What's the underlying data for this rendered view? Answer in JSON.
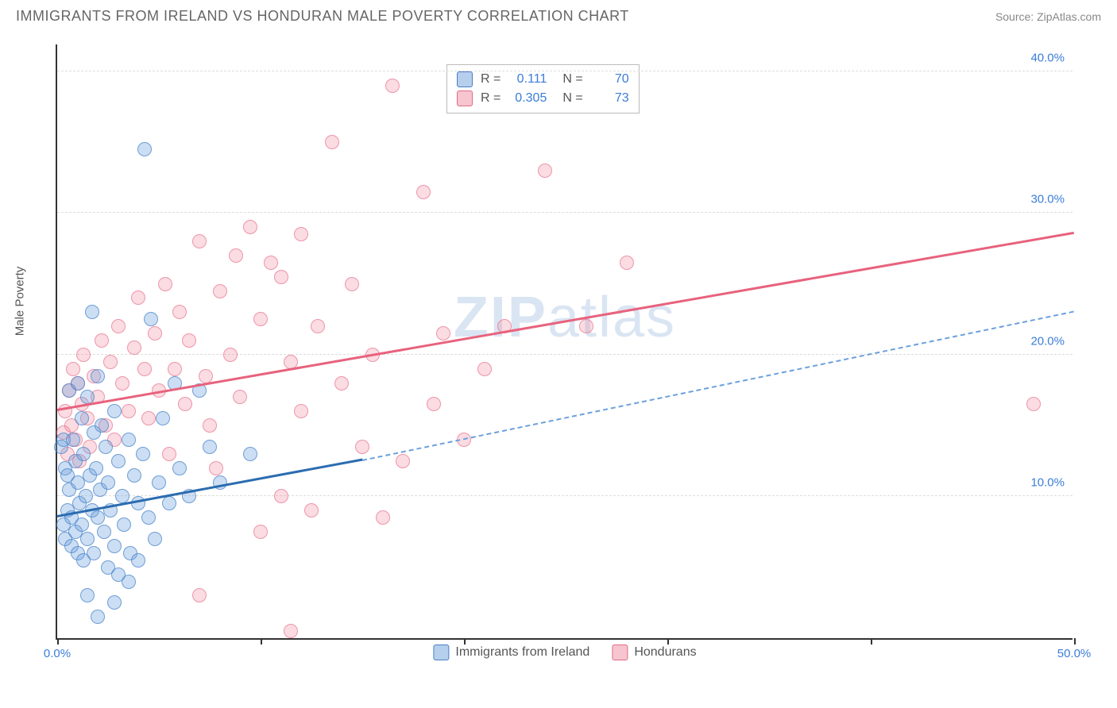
{
  "header": {
    "title": "IMMIGRANTS FROM IRELAND VS HONDURAN MALE POVERTY CORRELATION CHART",
    "source": "Source: ZipAtlas.com"
  },
  "chart": {
    "type": "scatter",
    "y_axis_label": "Male Poverty",
    "xlim": [
      0,
      50
    ],
    "ylim": [
      0,
      42
    ],
    "x_ticks": [
      0,
      10,
      20,
      30,
      40,
      50
    ],
    "x_tick_labels": [
      "0.0%",
      "",
      "",
      "",
      "",
      "50.0%"
    ],
    "y_ticks": [
      10,
      20,
      30,
      40
    ],
    "y_tick_labels": [
      "10.0%",
      "20.0%",
      "30.0%",
      "40.0%"
    ],
    "grid_color": "#dddddd",
    "background_color": "#ffffff",
    "axis_color": "#333333",
    "watermark": {
      "prefix": "ZIP",
      "suffix": "atlas"
    },
    "series": {
      "ireland": {
        "label": "Immigrants from Ireland",
        "color_fill": "rgba(108,160,220,0.35)",
        "color_border": "#4a7fc4",
        "R": "0.111",
        "N": "70",
        "trend": {
          "x1": 0,
          "y1": 8.5,
          "x2_solid": 15,
          "y2_solid": 12.5,
          "x2": 50,
          "y2": 23
        },
        "points": [
          [
            0.2,
            13.5
          ],
          [
            0.3,
            14.0
          ],
          [
            0.3,
            8.0
          ],
          [
            0.4,
            12.0
          ],
          [
            0.4,
            7.0
          ],
          [
            0.5,
            11.5
          ],
          [
            0.5,
            9.0
          ],
          [
            0.6,
            17.5
          ],
          [
            0.6,
            10.5
          ],
          [
            0.7,
            8.5
          ],
          [
            0.7,
            6.5
          ],
          [
            0.8,
            14.0
          ],
          [
            0.9,
            12.5
          ],
          [
            0.9,
            7.5
          ],
          [
            1.0,
            18.0
          ],
          [
            1.0,
            11.0
          ],
          [
            1.0,
            6.0
          ],
          [
            1.1,
            9.5
          ],
          [
            1.2,
            15.5
          ],
          [
            1.2,
            8.0
          ],
          [
            1.3,
            13.0
          ],
          [
            1.3,
            5.5
          ],
          [
            1.4,
            10.0
          ],
          [
            1.5,
            17.0
          ],
          [
            1.5,
            7.0
          ],
          [
            1.6,
            11.5
          ],
          [
            1.7,
            23.0
          ],
          [
            1.7,
            9.0
          ],
          [
            1.8,
            14.5
          ],
          [
            1.8,
            6.0
          ],
          [
            1.9,
            12.0
          ],
          [
            2.0,
            18.5
          ],
          [
            2.0,
            8.5
          ],
          [
            2.1,
            10.5
          ],
          [
            2.2,
            15.0
          ],
          [
            2.3,
            7.5
          ],
          [
            2.4,
            13.5
          ],
          [
            2.5,
            11.0
          ],
          [
            2.5,
            5.0
          ],
          [
            2.6,
            9.0
          ],
          [
            2.8,
            16.0
          ],
          [
            2.8,
            6.5
          ],
          [
            3.0,
            12.5
          ],
          [
            3.0,
            4.5
          ],
          [
            3.2,
            10.0
          ],
          [
            3.3,
            8.0
          ],
          [
            3.5,
            14.0
          ],
          [
            3.6,
            6.0
          ],
          [
            3.8,
            11.5
          ],
          [
            4.0,
            9.5
          ],
          [
            4.0,
            5.5
          ],
          [
            4.2,
            13.0
          ],
          [
            4.3,
            34.5
          ],
          [
            4.5,
            8.5
          ],
          [
            4.6,
            22.5
          ],
          [
            4.8,
            7.0
          ],
          [
            5.0,
            11.0
          ],
          [
            5.2,
            15.5
          ],
          [
            5.5,
            9.5
          ],
          [
            5.8,
            18.0
          ],
          [
            6.0,
            12.0
          ],
          [
            6.5,
            10.0
          ],
          [
            7.0,
            17.5
          ],
          [
            7.5,
            13.5
          ],
          [
            8.0,
            11.0
          ],
          [
            9.5,
            13.0
          ],
          [
            2.0,
            1.5
          ],
          [
            2.8,
            2.5
          ],
          [
            1.5,
            3.0
          ],
          [
            3.5,
            4.0
          ]
        ]
      },
      "hondurans": {
        "label": "Hondurans",
        "color_fill": "rgba(240,140,160,0.3)",
        "color_border": "#e06a85",
        "R": "0.305",
        "N": "73",
        "trend": {
          "x1": 0,
          "y1": 16,
          "x2": 50,
          "y2": 28.5
        },
        "points": [
          [
            0.3,
            14.5
          ],
          [
            0.4,
            16.0
          ],
          [
            0.5,
            13.0
          ],
          [
            0.6,
            17.5
          ],
          [
            0.7,
            15.0
          ],
          [
            0.8,
            19.0
          ],
          [
            0.9,
            14.0
          ],
          [
            1.0,
            18.0
          ],
          [
            1.1,
            12.5
          ],
          [
            1.2,
            16.5
          ],
          [
            1.3,
            20.0
          ],
          [
            1.5,
            15.5
          ],
          [
            1.6,
            13.5
          ],
          [
            1.8,
            18.5
          ],
          [
            2.0,
            17.0
          ],
          [
            2.2,
            21.0
          ],
          [
            2.4,
            15.0
          ],
          [
            2.6,
            19.5
          ],
          [
            2.8,
            14.0
          ],
          [
            3.0,
            22.0
          ],
          [
            3.2,
            18.0
          ],
          [
            3.5,
            16.0
          ],
          [
            3.8,
            20.5
          ],
          [
            4.0,
            24.0
          ],
          [
            4.3,
            19.0
          ],
          [
            4.5,
            15.5
          ],
          [
            4.8,
            21.5
          ],
          [
            5.0,
            17.5
          ],
          [
            5.3,
            25.0
          ],
          [
            5.5,
            13.0
          ],
          [
            5.8,
            19.0
          ],
          [
            6.0,
            23.0
          ],
          [
            6.3,
            16.5
          ],
          [
            6.5,
            21.0
          ],
          [
            7.0,
            28.0
          ],
          [
            7.3,
            18.5
          ],
          [
            7.5,
            15.0
          ],
          [
            7.8,
            12.0
          ],
          [
            8.0,
            24.5
          ],
          [
            8.5,
            20.0
          ],
          [
            8.8,
            27.0
          ],
          [
            9.0,
            17.0
          ],
          [
            9.5,
            29.0
          ],
          [
            10.0,
            22.5
          ],
          [
            10.5,
            26.5
          ],
          [
            11.0,
            10.0
          ],
          [
            11.0,
            25.5
          ],
          [
            11.5,
            19.5
          ],
          [
            12.0,
            28.5
          ],
          [
            12.5,
            9.0
          ],
          [
            12.8,
            22.0
          ],
          [
            13.5,
            35.0
          ],
          [
            14.0,
            18.0
          ],
          [
            14.5,
            25.0
          ],
          [
            15.0,
            13.5
          ],
          [
            15.5,
            20.0
          ],
          [
            16.0,
            8.5
          ],
          [
            16.5,
            39.0
          ],
          [
            17.0,
            12.5
          ],
          [
            18.0,
            31.5
          ],
          [
            18.5,
            16.5
          ],
          [
            19.0,
            21.5
          ],
          [
            20.0,
            14.0
          ],
          [
            21.0,
            19.0
          ],
          [
            22.0,
            22.0
          ],
          [
            24.0,
            33.0
          ],
          [
            26.0,
            22.0
          ],
          [
            28.0,
            26.5
          ],
          [
            7.0,
            3.0
          ],
          [
            10.0,
            7.5
          ],
          [
            11.5,
            0.5
          ],
          [
            12.0,
            16.0
          ],
          [
            48.0,
            16.5
          ]
        ]
      }
    },
    "stat_legend": {
      "r_label": "R =",
      "n_label": "N ="
    }
  }
}
